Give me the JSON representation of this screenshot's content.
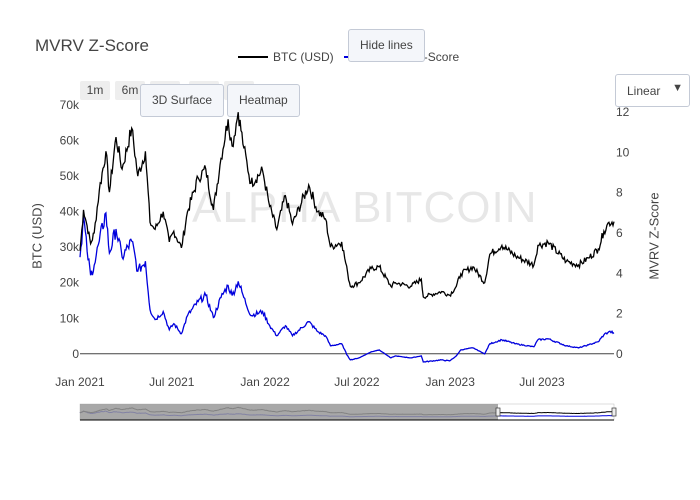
{
  "title": "MVRV Z-Score",
  "watermark": "ALPHA BITCOIN",
  "buttons": {
    "hide_lines": "Hide lines",
    "surface_3d": "3D Surface",
    "heatmap": "Heatmap"
  },
  "range_selector": [
    "1m",
    "6m"
  ],
  "scale_select": "Linear",
  "colors": {
    "btc": "#000000",
    "zscore": "#0000dd",
    "zero_line": "#444444",
    "rangeslider_bg": "#999999"
  },
  "chart_data": {
    "type": "line",
    "title": "MVRV Z-Score",
    "xlabel": "",
    "x_ticks": [
      "Jan 2021",
      "Jul 2021",
      "Jan 2022",
      "Jul 2022",
      "Jan 2023",
      "Jul 2023"
    ],
    "y_left": {
      "label": "BTC (USD)",
      "ticks": [
        "0",
        "10k",
        "20k",
        "30k",
        "40k",
        "50k",
        "60k",
        "70k"
      ],
      "range": [
        -4000,
        72000
      ]
    },
    "y_right": {
      "label": "MVRV Z-Score",
      "ticks": [
        "0",
        "2",
        "4",
        "6",
        "8",
        "10",
        "12"
      ],
      "range": [
        -0.7,
        12.7
      ]
    },
    "x_range": [
      "2021-01-01",
      "2023-11-20"
    ],
    "legend": {
      "position": "top-center",
      "entries": [
        "BTC (USD)",
        "MVRV Z-Score"
      ]
    },
    "series": [
      {
        "name": "BTC (USD)",
        "axis": "left",
        "points": [
          [
            "2021-01-01",
            29000
          ],
          [
            "2021-01-08",
            40500
          ],
          [
            "2021-01-15",
            36000
          ],
          [
            "2021-01-22",
            31000
          ],
          [
            "2021-01-29",
            34000
          ],
          [
            "2021-02-08",
            46000
          ],
          [
            "2021-02-21",
            57000
          ],
          [
            "2021-02-28",
            45500
          ],
          [
            "2021-03-13",
            61000
          ],
          [
            "2021-03-25",
            52000
          ],
          [
            "2021-04-13",
            63500
          ],
          [
            "2021-04-25",
            50000
          ],
          [
            "2021-05-10",
            57000
          ],
          [
            "2021-05-19",
            37000
          ],
          [
            "2021-05-29",
            35000
          ],
          [
            "2021-06-14",
            40000
          ],
          [
            "2021-06-26",
            31500
          ],
          [
            "2021-07-05",
            34500
          ],
          [
            "2021-07-20",
            29800
          ],
          [
            "2021-08-01",
            40000
          ],
          [
            "2021-08-22",
            49500
          ],
          [
            "2021-09-06",
            52000
          ],
          [
            "2021-09-21",
            40500
          ],
          [
            "2021-10-06",
            55000
          ],
          [
            "2021-10-20",
            66000
          ],
          [
            "2021-10-28",
            58500
          ],
          [
            "2021-11-09",
            68000
          ],
          [
            "2021-11-20",
            58000
          ],
          [
            "2021-12-04",
            48000
          ],
          [
            "2021-12-27",
            51500
          ],
          [
            "2022-01-10",
            41500
          ],
          [
            "2022-01-24",
            35000
          ],
          [
            "2022-02-10",
            44500
          ],
          [
            "2022-02-24",
            36500
          ],
          [
            "2022-03-28",
            47500
          ],
          [
            "2022-04-15",
            40000
          ],
          [
            "2022-04-30",
            38000
          ],
          [
            "2022-05-10",
            30000
          ],
          [
            "2022-06-01",
            31500
          ],
          [
            "2022-06-13",
            22500
          ],
          [
            "2022-06-18",
            19000
          ],
          [
            "2022-07-05",
            20000
          ],
          [
            "2022-07-29",
            24000
          ],
          [
            "2022-08-14",
            24500
          ],
          [
            "2022-09-06",
            19000
          ],
          [
            "2022-09-15",
            20000
          ],
          [
            "2022-10-15",
            19000
          ],
          [
            "2022-11-05",
            21000
          ],
          [
            "2022-11-09",
            16000
          ],
          [
            "2022-12-15",
            17500
          ],
          [
            "2022-12-31",
            16500
          ],
          [
            "2023-01-13",
            19000
          ],
          [
            "2023-01-22",
            22500
          ],
          [
            "2023-02-15",
            24500
          ],
          [
            "2023-03-10",
            20000
          ],
          [
            "2023-03-20",
            28000
          ],
          [
            "2023-04-13",
            30500
          ],
          [
            "2023-05-10",
            27500
          ],
          [
            "2023-06-15",
            25000
          ],
          [
            "2023-06-23",
            30500
          ],
          [
            "2023-07-13",
            31300
          ],
          [
            "2023-08-18",
            26000
          ],
          [
            "2023-09-11",
            25000
          ],
          [
            "2023-10-01",
            27000
          ],
          [
            "2023-10-20",
            29500
          ],
          [
            "2023-10-31",
            34500
          ],
          [
            "2023-11-10",
            37000
          ],
          [
            "2023-11-20",
            37200
          ]
        ]
      },
      {
        "name": "MVRV Z-Score",
        "axis": "right",
        "points": [
          [
            "2021-01-01",
            4.8
          ],
          [
            "2021-01-08",
            6.8
          ],
          [
            "2021-01-15",
            5.1
          ],
          [
            "2021-01-22",
            3.9
          ],
          [
            "2021-01-29",
            4.4
          ],
          [
            "2021-02-08",
            5.6
          ],
          [
            "2021-02-21",
            7.0
          ],
          [
            "2021-02-28",
            5.0
          ],
          [
            "2021-03-13",
            6.2
          ],
          [
            "2021-03-25",
            4.8
          ],
          [
            "2021-04-13",
            5.6
          ],
          [
            "2021-04-25",
            4.1
          ],
          [
            "2021-05-10",
            4.6
          ],
          [
            "2021-05-19",
            2.2
          ],
          [
            "2021-05-29",
            1.7
          ],
          [
            "2021-06-14",
            2.1
          ],
          [
            "2021-06-26",
            1.2
          ],
          [
            "2021-07-05",
            1.5
          ],
          [
            "2021-07-20",
            1.0
          ],
          [
            "2021-08-01",
            1.9
          ],
          [
            "2021-08-22",
            2.6
          ],
          [
            "2021-09-06",
            2.9
          ],
          [
            "2021-09-21",
            1.8
          ],
          [
            "2021-10-06",
            2.8
          ],
          [
            "2021-10-20",
            3.4
          ],
          [
            "2021-10-28",
            2.9
          ],
          [
            "2021-11-09",
            3.6
          ],
          [
            "2021-11-20",
            2.8
          ],
          [
            "2021-12-04",
            1.9
          ],
          [
            "2021-12-27",
            2.1
          ],
          [
            "2022-01-10",
            1.4
          ],
          [
            "2022-01-24",
            0.9
          ],
          [
            "2022-02-10",
            1.4
          ],
          [
            "2022-02-24",
            0.9
          ],
          [
            "2022-03-28",
            1.6
          ],
          [
            "2022-04-15",
            1.1
          ],
          [
            "2022-04-30",
            0.9
          ],
          [
            "2022-05-10",
            0.4
          ],
          [
            "2022-06-01",
            0.5
          ],
          [
            "2022-06-13",
            -0.1
          ],
          [
            "2022-06-18",
            -0.3
          ],
          [
            "2022-07-05",
            -0.2
          ],
          [
            "2022-07-29",
            0.1
          ],
          [
            "2022-08-14",
            0.2
          ],
          [
            "2022-09-06",
            -0.2
          ],
          [
            "2022-09-15",
            -0.1
          ],
          [
            "2022-10-15",
            -0.2
          ],
          [
            "2022-11-05",
            -0.1
          ],
          [
            "2022-11-09",
            -0.4
          ],
          [
            "2022-12-15",
            -0.3
          ],
          [
            "2022-12-31",
            -0.35
          ],
          [
            "2023-01-13",
            -0.1
          ],
          [
            "2023-01-22",
            0.2
          ],
          [
            "2023-02-15",
            0.3
          ],
          [
            "2023-03-10",
            0.0
          ],
          [
            "2023-03-20",
            0.5
          ],
          [
            "2023-04-13",
            0.7
          ],
          [
            "2023-05-10",
            0.5
          ],
          [
            "2023-06-15",
            0.35
          ],
          [
            "2023-06-23",
            0.7
          ],
          [
            "2023-07-13",
            0.75
          ],
          [
            "2023-08-18",
            0.4
          ],
          [
            "2023-09-11",
            0.3
          ],
          [
            "2023-10-01",
            0.45
          ],
          [
            "2023-10-20",
            0.6
          ],
          [
            "2023-10-31",
            0.95
          ],
          [
            "2023-11-10",
            1.1
          ],
          [
            "2023-11-20",
            1.05
          ]
        ]
      }
    ],
    "rangeslider": {
      "selected_start": "2021-01-01",
      "selected_end": "2023-11-20",
      "visible": true
    },
    "grid": false
  }
}
